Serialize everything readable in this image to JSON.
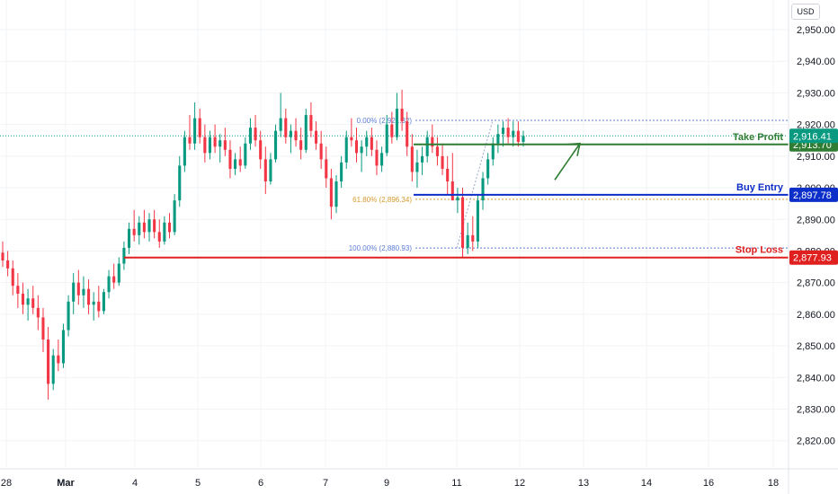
{
  "currency": "USD",
  "chart_data": {
    "type": "candlestick",
    "y_axis": {
      "range": [
        2815,
        2962
      ],
      "ticks": [
        2820,
        2830,
        2840,
        2850,
        2860,
        2870,
        2880,
        2890,
        2900,
        2910,
        2920,
        2930,
        2940,
        2950
      ],
      "tick_labels": [
        "2,820.00",
        "2,830.00",
        "2,840.00",
        "2,850.00",
        "2,860.00",
        "2,870.00",
        "2,880.00",
        "2,890.00",
        "2,900.00",
        "2,910.00",
        "2,920.00",
        "2,930.00",
        "2,940.00",
        "2,950.00"
      ]
    },
    "x_axis": {
      "labels": [
        "28",
        "Mar",
        "4",
        "5",
        "6",
        "7",
        "9",
        "11",
        "12",
        "13",
        "14",
        "16",
        "18"
      ]
    },
    "last_price": {
      "value": 2916.41,
      "label": "2,916.41"
    },
    "levels": [
      {
        "name": "Take Profit",
        "value": 2913.7,
        "label": "2,913.70",
        "color": "#2e7d32"
      },
      {
        "name": "Buy Entry",
        "value": 2897.78,
        "label": "2,897.78",
        "color": "#0d2fc9"
      },
      {
        "name": "Stop Loss",
        "value": 2877.93,
        "label": "2,877.93",
        "color": "#e01f1f"
      }
    ],
    "fibonacci": [
      {
        "label": "0.00% (2,921.32)",
        "value": 2921.32,
        "color": "#5b7fd6"
      },
      {
        "label": "61.80% (2,896.34)",
        "value": 2896.34,
        "color": "#d69a2d"
      },
      {
        "label": "100.00% (2,880.93)",
        "value": 2880.93,
        "color": "#5b7fd6"
      }
    ],
    "arrow": {
      "from": 2902.5,
      "to": 2914.0
    },
    "up_color": "#089981",
    "down_color": "#f23645",
    "candles": [
      [
        2879.5,
        2883.0,
        2875.0,
        2877.0
      ],
      [
        2877.0,
        2880.0,
        2872.0,
        2874.5
      ],
      [
        2874.5,
        2877.0,
        2866.0,
        2869.0
      ],
      [
        2869.0,
        2873.0,
        2862.0,
        2866.5
      ],
      [
        2866.5,
        2870.0,
        2860.0,
        2863.0
      ],
      [
        2863.0,
        2868.0,
        2858.0,
        2865.0
      ],
      [
        2865.0,
        2869.0,
        2860.0,
        2862.0
      ],
      [
        2862.0,
        2866.0,
        2855.0,
        2859.0
      ],
      [
        2859.0,
        2862.0,
        2848.0,
        2852.0
      ],
      [
        2852.0,
        2856.0,
        2833.0,
        2838.0
      ],
      [
        2838.0,
        2849.0,
        2836.0,
        2847.0
      ],
      [
        2847.0,
        2852.0,
        2842.0,
        2844.5
      ],
      [
        2844.5,
        2857.0,
        2843.0,
        2855.0
      ],
      [
        2855.0,
        2866.0,
        2853.0,
        2864.0
      ],
      [
        2864.0,
        2873.0,
        2860.0,
        2870.0
      ],
      [
        2870.0,
        2874.0,
        2863.0,
        2866.0
      ],
      [
        2866.0,
        2872.0,
        2862.0,
        2868.0
      ],
      [
        2868.0,
        2871.0,
        2860.0,
        2863.0
      ],
      [
        2863.0,
        2867.0,
        2858.0,
        2864.0
      ],
      [
        2864.0,
        2869.0,
        2859.0,
        2861.0
      ],
      [
        2861.0,
        2868.0,
        2860.0,
        2867.0
      ],
      [
        2867.0,
        2874.0,
        2865.0,
        2872.0
      ],
      [
        2872.0,
        2876.0,
        2868.0,
        2870.0
      ],
      [
        2870.0,
        2878.0,
        2869.0,
        2876.0
      ],
      [
        2876.0,
        2883.0,
        2874.0,
        2881.0
      ],
      [
        2881.0,
        2889.0,
        2879.0,
        2887.0
      ],
      [
        2887.0,
        2893.0,
        2883.0,
        2885.0
      ],
      [
        2885.0,
        2891.0,
        2882.0,
        2889.0
      ],
      [
        2889.0,
        2893.0,
        2884.0,
        2886.0
      ],
      [
        2886.0,
        2892.0,
        2883.0,
        2890.0
      ],
      [
        2890.0,
        2893.0,
        2884.0,
        2886.0
      ],
      [
        2886.0,
        2890.0,
        2881.0,
        2883.0
      ],
      [
        2883.0,
        2891.0,
        2882.0,
        2889.0
      ],
      [
        2889.0,
        2892.0,
        2884.0,
        2886.0
      ],
      [
        2886.0,
        2898.0,
        2885.0,
        2896.0
      ],
      [
        2896.0,
        2910.0,
        2894.0,
        2907.0
      ],
      [
        2907.0,
        2918.0,
        2905.0,
        2916.0
      ],
      [
        2916.0,
        2923.0,
        2912.0,
        2914.0
      ],
      [
        2914.0,
        2927.0,
        2912.0,
        2922.0
      ],
      [
        2922.0,
        2925.0,
        2914.0,
        2916.0
      ],
      [
        2916.0,
        2920.0,
        2908.0,
        2911.0
      ],
      [
        2911.0,
        2918.0,
        2909.0,
        2916.0
      ],
      [
        2916.0,
        2920.0,
        2911.0,
        2913.0
      ],
      [
        2913.0,
        2917.0,
        2908.0,
        2915.0
      ],
      [
        2915.0,
        2919.0,
        2910.0,
        2912.0
      ],
      [
        2912.0,
        2915.0,
        2903.0,
        2906.0
      ],
      [
        2906.0,
        2911.0,
        2904.0,
        2909.0
      ],
      [
        2909.0,
        2913.0,
        2905.0,
        2907.0
      ],
      [
        2907.0,
        2916.0,
        2906.0,
        2914.0
      ],
      [
        2914.0,
        2922.0,
        2912.0,
        2919.0
      ],
      [
        2919.0,
        2923.0,
        2913.0,
        2915.0
      ],
      [
        2915.0,
        2918.0,
        2906.0,
        2909.0
      ],
      [
        2909.0,
        2913.0,
        2898.0,
        2902.0
      ],
      [
        2902.0,
        2911.0,
        2901.0,
        2909.0
      ],
      [
        2909.0,
        2920.0,
        2908.0,
        2918.0
      ],
      [
        2918.0,
        2930.0,
        2916.0,
        2922.0
      ],
      [
        2922.0,
        2925.0,
        2914.0,
        2916.0
      ],
      [
        2916.0,
        2920.0,
        2911.0,
        2918.0
      ],
      [
        2918.0,
        2922.0,
        2913.0,
        2915.0
      ],
      [
        2915.0,
        2919.0,
        2909.0,
        2912.0
      ],
      [
        2912.0,
        2925.0,
        2911.0,
        2923.0
      ],
      [
        2923.0,
        2927.0,
        2916.0,
        2918.0
      ],
      [
        2918.0,
        2921.0,
        2912.0,
        2914.0
      ],
      [
        2914.0,
        2918.0,
        2906.0,
        2909.0
      ],
      [
        2909.0,
        2913.0,
        2900.0,
        2903.0
      ],
      [
        2903.0,
        2906.0,
        2890.0,
        2894.0
      ],
      [
        2894.0,
        2904.0,
        2892.0,
        2902.0
      ],
      [
        2902.0,
        2910.0,
        2900.0,
        2908.0
      ],
      [
        2908.0,
        2918.0,
        2906.0,
        2916.0
      ],
      [
        2916.0,
        2922.0,
        2913.0,
        2915.0
      ],
      [
        2915.0,
        2919.0,
        2908.0,
        2911.0
      ],
      [
        2911.0,
        2915.0,
        2905.0,
        2913.0
      ],
      [
        2913.0,
        2918.0,
        2910.0,
        2916.0
      ],
      [
        2916.0,
        2919.0,
        2910.0,
        2912.0
      ],
      [
        2912.0,
        2915.0,
        2904.0,
        2907.0
      ],
      [
        2907.0,
        2913.0,
        2905.0,
        2911.0
      ],
      [
        2911.0,
        2923.0,
        2910.0,
        2920.0
      ],
      [
        2920.0,
        2924.0,
        2914.0,
        2916.0
      ],
      [
        2916.0,
        2930.0,
        2915.0,
        2925.0
      ],
      [
        2925.0,
        2931.0,
        2918.0,
        2921.0
      ],
      [
        2921.0,
        2924.0,
        2910.0,
        2913.0
      ],
      [
        2913.0,
        2917.0,
        2902.0,
        2905.0
      ],
      [
        2905.0,
        2912.0,
        2900.0,
        2908.0
      ],
      [
        2908.0,
        2913.0,
        2904.0,
        2910.0
      ],
      [
        2910.0,
        2918.0,
        2908.0,
        2916.0
      ],
      [
        2916.0,
        2920.0,
        2911.0,
        2913.0
      ],
      [
        2913.0,
        2916.0,
        2907.0,
        2910.0
      ],
      [
        2910.0,
        2914.0,
        2904.0,
        2906.0
      ],
      [
        2906.0,
        2910.0,
        2898.0,
        2902.0
      ],
      [
        2902.0,
        2911.0,
        2897.0,
        2896.0
      ],
      [
        2896.0,
        2900.0,
        2892.0,
        2897.0
      ],
      [
        2897.0,
        2900.0,
        2878.0,
        2881.0
      ],
      [
        2881.0,
        2889.0,
        2879.0,
        2885.0
      ],
      [
        2885.0,
        2891.0,
        2880.0,
        2883.0
      ],
      [
        2883.0,
        2898.0,
        2881.0,
        2896.0
      ],
      [
        2896.0,
        2905.0,
        2893.0,
        2903.0
      ],
      [
        2903.0,
        2911.0,
        2901.0,
        2909.0
      ],
      [
        2909.0,
        2916.0,
        2907.0,
        2914.0
      ],
      [
        2914.0,
        2920.0,
        2911.0,
        2917.0
      ],
      [
        2917.0,
        2921.0,
        2913.0,
        2919.0
      ],
      [
        2919.0,
        2922.0,
        2914.0,
        2916.0
      ],
      [
        2916.0,
        2921.0,
        2913.0,
        2918.0
      ],
      [
        2918.0,
        2921.0,
        2913.0,
        2914.5
      ],
      [
        2914.5,
        2918.0,
        2913.0,
        2916.4
      ]
    ]
  }
}
